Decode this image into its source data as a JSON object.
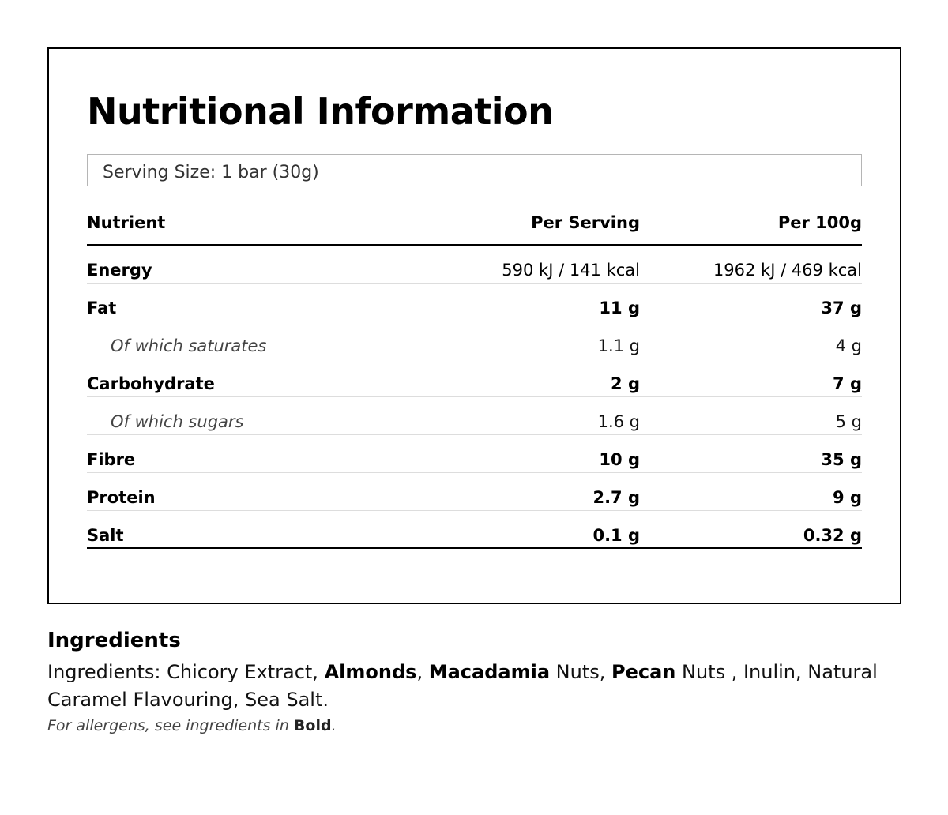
{
  "title": "Nutritional Information",
  "serving_size": "Serving Size: 1 bar (30g)",
  "table": {
    "headers": [
      "Nutrient",
      "Per Serving",
      "Per 100g"
    ],
    "rows": [
      {
        "nutrient": "Energy",
        "per_serving": "590 kJ / 141 kcal",
        "per_100g": "1962 kJ / 469 kcal"
      },
      {
        "nutrient": "Fat",
        "per_serving": "11 g",
        "per_100g": "37 g"
      },
      {
        "nutrient": "Of which saturates",
        "per_serving": "1.1 g",
        "per_100g": "4 g"
      },
      {
        "nutrient": "Carbohydrate",
        "per_serving": "2 g",
        "per_100g": "7 g"
      },
      {
        "nutrient": "Of which sugars",
        "per_serving": "1.6 g",
        "per_100g": "5 g"
      },
      {
        "nutrient": "Fibre",
        "per_serving": "10 g",
        "per_100g": "35 g"
      },
      {
        "nutrient": "Protein",
        "per_serving": "2.7 g",
        "per_100g": "9 g"
      },
      {
        "nutrient": "Salt",
        "per_serving": "0.1 g",
        "per_100g": "0.32 g"
      }
    ]
  },
  "ingredients": {
    "heading": "Ingredients",
    "prefix": "Ingredients: Chicory Extract, ",
    "allergen_1": "Almonds",
    "sep_1": ", ",
    "allergen_2": "Macadamia",
    "text_2": " Nuts, ",
    "allergen_3": "Pecan",
    "text_3": " Nuts , Inulin, Natural Caramel Flavouring, Sea Salt.",
    "allergen_note": "For allergens, see ingredients in ",
    "allergen_note_bold": "Bold",
    "allergen_note_end": "."
  }
}
